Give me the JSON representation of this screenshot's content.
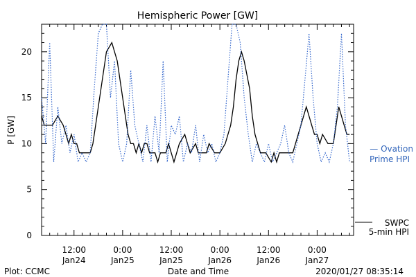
{
  "footer": {
    "left": "Plot: CCMC",
    "center": "Date and Time",
    "right": "2020/01/27 08:35:14"
  },
  "legend": {
    "ovation": [
      "— Ovation",
      "Prime HPI"
    ],
    "swpc": [
      "SWPC",
      "5-min HPI"
    ]
  },
  "colors": {
    "ovation": "#3366cc",
    "swpc": "#000000",
    "axis": "#000000"
  },
  "chart_data": {
    "type": "line",
    "title": "Hemispheric Power [GW]",
    "ylabel": "P [GW]",
    "xlabel": "Date and Time",
    "ylim": [
      0,
      23
    ],
    "yticks": [
      0,
      5,
      10,
      15,
      20
    ],
    "xlim": [
      "2020-01-24 04:00",
      "2020-01-27 09:00"
    ],
    "xticks": [
      {
        "t": "2020-01-24 12:00",
        "line1": "12:00",
        "line2": "Jan24"
      },
      {
        "t": "2020-01-25 00:00",
        "line1": "0:00",
        "line2": "Jan25"
      },
      {
        "t": "2020-01-25 12:00",
        "line1": "12:00",
        "line2": "Jan25"
      },
      {
        "t": "2020-01-26 00:00",
        "line1": "0:00",
        "line2": "Jan26"
      },
      {
        "t": "2020-01-26 12:00",
        "line1": "12:00",
        "line2": "Jan26"
      },
      {
        "t": "2020-01-27 00:00",
        "line1": "0:00",
        "line2": "Jan27"
      }
    ],
    "grid": false,
    "series": [
      {
        "name": "SWPC 5-min HPI",
        "style": "solid",
        "x": [
          "2020-01-24 04:00",
          "2020-01-24 04:40",
          "2020-01-24 05:20",
          "2020-01-24 06:40",
          "2020-01-24 08:00",
          "2020-01-24 09:20",
          "2020-01-24 10:00",
          "2020-01-24 10:40",
          "2020-01-24 11:20",
          "2020-01-24 12:00",
          "2020-01-24 12:40",
          "2020-01-24 13:20",
          "2020-01-24 14:00",
          "2020-01-24 14:40",
          "2020-01-24 15:20",
          "2020-01-24 16:00",
          "2020-01-24 16:40",
          "2020-01-24 17:20",
          "2020-01-24 18:00",
          "2020-01-24 18:40",
          "2020-01-24 20:00",
          "2020-01-24 21:20",
          "2020-01-24 22:00",
          "2020-01-24 22:40",
          "2020-01-24 23:20",
          "2020-01-25 00:00",
          "2020-01-25 00:40",
          "2020-01-25 01:20",
          "2020-01-25 02:00",
          "2020-01-25 02:40",
          "2020-01-25 03:20",
          "2020-01-25 04:00",
          "2020-01-25 04:40",
          "2020-01-25 05:20",
          "2020-01-25 06:00",
          "2020-01-25 06:40",
          "2020-01-25 07:20",
          "2020-01-25 08:00",
          "2020-01-25 08:40",
          "2020-01-25 09:20",
          "2020-01-25 10:00",
          "2020-01-25 10:40",
          "2020-01-25 11:20",
          "2020-01-25 12:00",
          "2020-01-25 12:40",
          "2020-01-25 13:20",
          "2020-01-25 14:00",
          "2020-01-25 15:20",
          "2020-01-25 16:40",
          "2020-01-25 18:00",
          "2020-01-25 18:40",
          "2020-01-25 19:20",
          "2020-01-25 20:00",
          "2020-01-25 20:40",
          "2020-01-25 21:20",
          "2020-01-25 22:40",
          "2020-01-26 00:00",
          "2020-01-26 01:20",
          "2020-01-26 02:00",
          "2020-01-26 02:40",
          "2020-01-26 03:20",
          "2020-01-26 04:00",
          "2020-01-26 04:40",
          "2020-01-26 05:20",
          "2020-01-26 06:00",
          "2020-01-26 07:20",
          "2020-01-26 08:00",
          "2020-01-26 08:40",
          "2020-01-26 09:20",
          "2020-01-26 10:00",
          "2020-01-26 11:20",
          "2020-01-26 12:40",
          "2020-01-26 13:20",
          "2020-01-26 14:00",
          "2020-01-26 14:40",
          "2020-01-26 15:20",
          "2020-01-26 16:00",
          "2020-01-26 16:40",
          "2020-01-26 17:20",
          "2020-01-26 18:00",
          "2020-01-26 18:40",
          "2020-01-26 19:20",
          "2020-01-26 20:00",
          "2020-01-26 20:40",
          "2020-01-26 21:20",
          "2020-01-26 22:00",
          "2020-01-26 22:40",
          "2020-01-26 23:20",
          "2020-01-27 00:00",
          "2020-01-27 00:40",
          "2020-01-27 01:20",
          "2020-01-27 02:40",
          "2020-01-27 04:00",
          "2020-01-27 04:40",
          "2020-01-27 05:20",
          "2020-01-27 06:00",
          "2020-01-27 06:40",
          "2020-01-27 07:20",
          "2020-01-27 08:00"
        ],
        "values": [
          13,
          12,
          12,
          12,
          13,
          12,
          11,
          10,
          11,
          10,
          10,
          9,
          9,
          9,
          9,
          9,
          10,
          12,
          14,
          16,
          20,
          21,
          20,
          19,
          17,
          15,
          13,
          11,
          10,
          10,
          9,
          10,
          9,
          10,
          10,
          9,
          9,
          9,
          8,
          9,
          9,
          9,
          10,
          9,
          8,
          9,
          10,
          11,
          9,
          10,
          9,
          9,
          9,
          9,
          10,
          9,
          9,
          10,
          11,
          12,
          14,
          17,
          19,
          20,
          19,
          16,
          13,
          11,
          10,
          9,
          9,
          8,
          9,
          8,
          9,
          9,
          9,
          9,
          9,
          9,
          10,
          11,
          12,
          13,
          14,
          13,
          12,
          11,
          11,
          10,
          11,
          10,
          10,
          12,
          14,
          13,
          12,
          11,
          11
        ]
      },
      {
        "name": "Ovation Prime HPI",
        "style": "dotted",
        "x": [
          "2020-01-24 04:00",
          "2020-01-24 05:00",
          "2020-01-24 06:00",
          "2020-01-24 07:00",
          "2020-01-24 08:00",
          "2020-01-24 09:00",
          "2020-01-24 10:00",
          "2020-01-24 11:00",
          "2020-01-24 12:00",
          "2020-01-24 13:00",
          "2020-01-24 14:00",
          "2020-01-24 15:00",
          "2020-01-24 16:00",
          "2020-01-24 17:00",
          "2020-01-24 18:00",
          "2020-01-24 19:00",
          "2020-01-24 20:00",
          "2020-01-24 21:00",
          "2020-01-24 22:00",
          "2020-01-24 23:00",
          "2020-01-25 00:00",
          "2020-01-25 01:00",
          "2020-01-25 02:00",
          "2020-01-25 03:00",
          "2020-01-25 04:00",
          "2020-01-25 05:00",
          "2020-01-25 06:00",
          "2020-01-25 07:00",
          "2020-01-25 08:00",
          "2020-01-25 09:00",
          "2020-01-25 10:00",
          "2020-01-25 11:00",
          "2020-01-25 12:00",
          "2020-01-25 13:00",
          "2020-01-25 14:00",
          "2020-01-25 15:00",
          "2020-01-25 16:00",
          "2020-01-25 17:00",
          "2020-01-25 18:00",
          "2020-01-25 19:00",
          "2020-01-25 20:00",
          "2020-01-25 21:00",
          "2020-01-25 22:00",
          "2020-01-25 23:00",
          "2020-01-26 00:00",
          "2020-01-26 01:00",
          "2020-01-26 02:00",
          "2020-01-26 03:00",
          "2020-01-26 04:00",
          "2020-01-26 05:00",
          "2020-01-26 06:00",
          "2020-01-26 07:00",
          "2020-01-26 08:00",
          "2020-01-26 09:00",
          "2020-01-26 10:00",
          "2020-01-26 11:00",
          "2020-01-26 12:00",
          "2020-01-26 13:00",
          "2020-01-26 14:00",
          "2020-01-26 15:00",
          "2020-01-26 16:00",
          "2020-01-26 17:00",
          "2020-01-26 18:00",
          "2020-01-26 19:00",
          "2020-01-26 20:00",
          "2020-01-26 21:00",
          "2020-01-26 22:00",
          "2020-01-26 23:00",
          "2020-01-27 00:00",
          "2020-01-27 01:00",
          "2020-01-27 02:00",
          "2020-01-27 03:00",
          "2020-01-27 04:00",
          "2020-01-27 05:00",
          "2020-01-27 06:00",
          "2020-01-27 07:00",
          "2020-01-27 08:00"
        ],
        "values": [
          15,
          10,
          21,
          8,
          14,
          10,
          12,
          9,
          11,
          8,
          9,
          8,
          9,
          16,
          22,
          23,
          23,
          15,
          19,
          10,
          8,
          10,
          18,
          12,
          10,
          8,
          12,
          8,
          13,
          9,
          19,
          8,
          12,
          11,
          13,
          8,
          10,
          9,
          12,
          8,
          11,
          9,
          10,
          8,
          9,
          11,
          17,
          23,
          23,
          21,
          15,
          11,
          8,
          10,
          9,
          8,
          10,
          8,
          9,
          10,
          12,
          9,
          8,
          10,
          12,
          17,
          22,
          15,
          10,
          8,
          9,
          8,
          10,
          14,
          22,
          12,
          8
        ]
      }
    ]
  }
}
